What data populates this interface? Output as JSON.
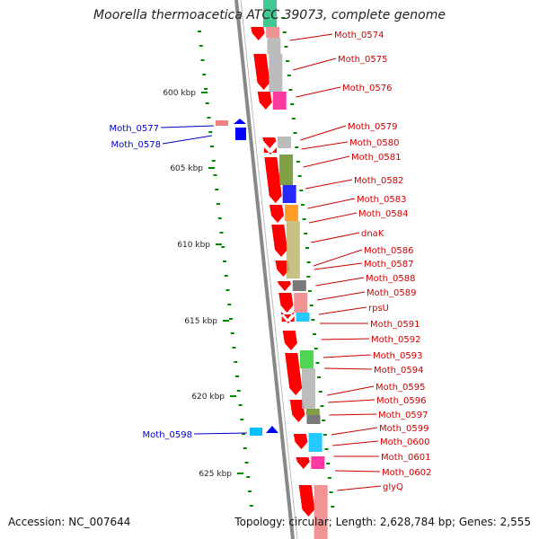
{
  "title": "Moorella thermoacetica ATCC 39073, complete genome",
  "footer": {
    "accession": "Accession: NC_007644",
    "stats": "Topology: circular; Length: 2,628,784 bp; Genes: 2,555"
  },
  "colors": {
    "forward_gene": "#ff0000",
    "reverse_gene": "#0000ff",
    "label_forward": "#cc0000",
    "label_reverse": "#0000cc",
    "gc_skew": "#008800",
    "backbone": "#888888"
  },
  "kbp_ticks": [
    "600 kbp",
    "605 kbp",
    "610 kbp",
    "615 kbp",
    "620 kbp",
    "625 kbp"
  ],
  "forward_labels": [
    "Moth_0574",
    "Moth_0575",
    "Moth_0576",
    "Moth_0579",
    "Moth_0580",
    "Moth_0581",
    "Moth_0582",
    "Moth_0583",
    "Moth_0584",
    "dnaK",
    "Moth_0586",
    "Moth_0587",
    "Moth_0588",
    "Moth_0589",
    "rpsU",
    "Moth_0591",
    "Moth_0592",
    "Moth_0593",
    "Moth_0594",
    "Moth_0595",
    "Moth_0596",
    "Moth_0597",
    "Moth_0599",
    "Moth_0600",
    "Moth_0601",
    "Moth_0602",
    "glyQ"
  ],
  "reverse_labels": [
    "Moth_0577",
    "Moth_0578",
    "Moth_0598"
  ],
  "cog_colors": [
    "#20c080",
    "#f08080",
    "#b0b0b0",
    "#b0b0b0",
    "#ff1493",
    "#b0b0b0",
    "#6b8e23",
    "#0000ff",
    "#ff8c00",
    "#bdb76b",
    "#606060",
    "#f08080",
    "#00bfff",
    "#32cd32",
    "#b0b0b0",
    "#6b8e23",
    "#606060",
    "#00bfff",
    "#ff1493",
    "#f08080"
  ]
}
